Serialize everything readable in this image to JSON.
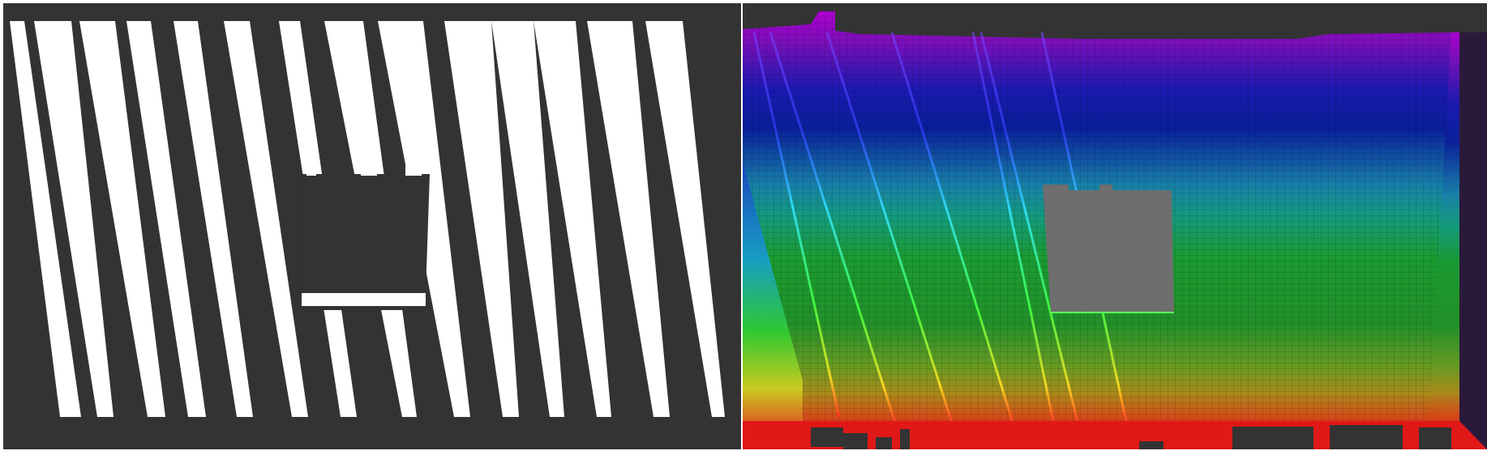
{
  "figure": {
    "panels": [
      {
        "name": "binary-occupancy-mask",
        "colors": {
          "background": "#333333",
          "occupied": "#ffffff"
        }
      },
      {
        "name": "height-colored-voxel-render",
        "colors": {
          "background": "#333333",
          "hole": "#6e6e6e",
          "grid": "#000000"
        }
      }
    ]
  }
}
